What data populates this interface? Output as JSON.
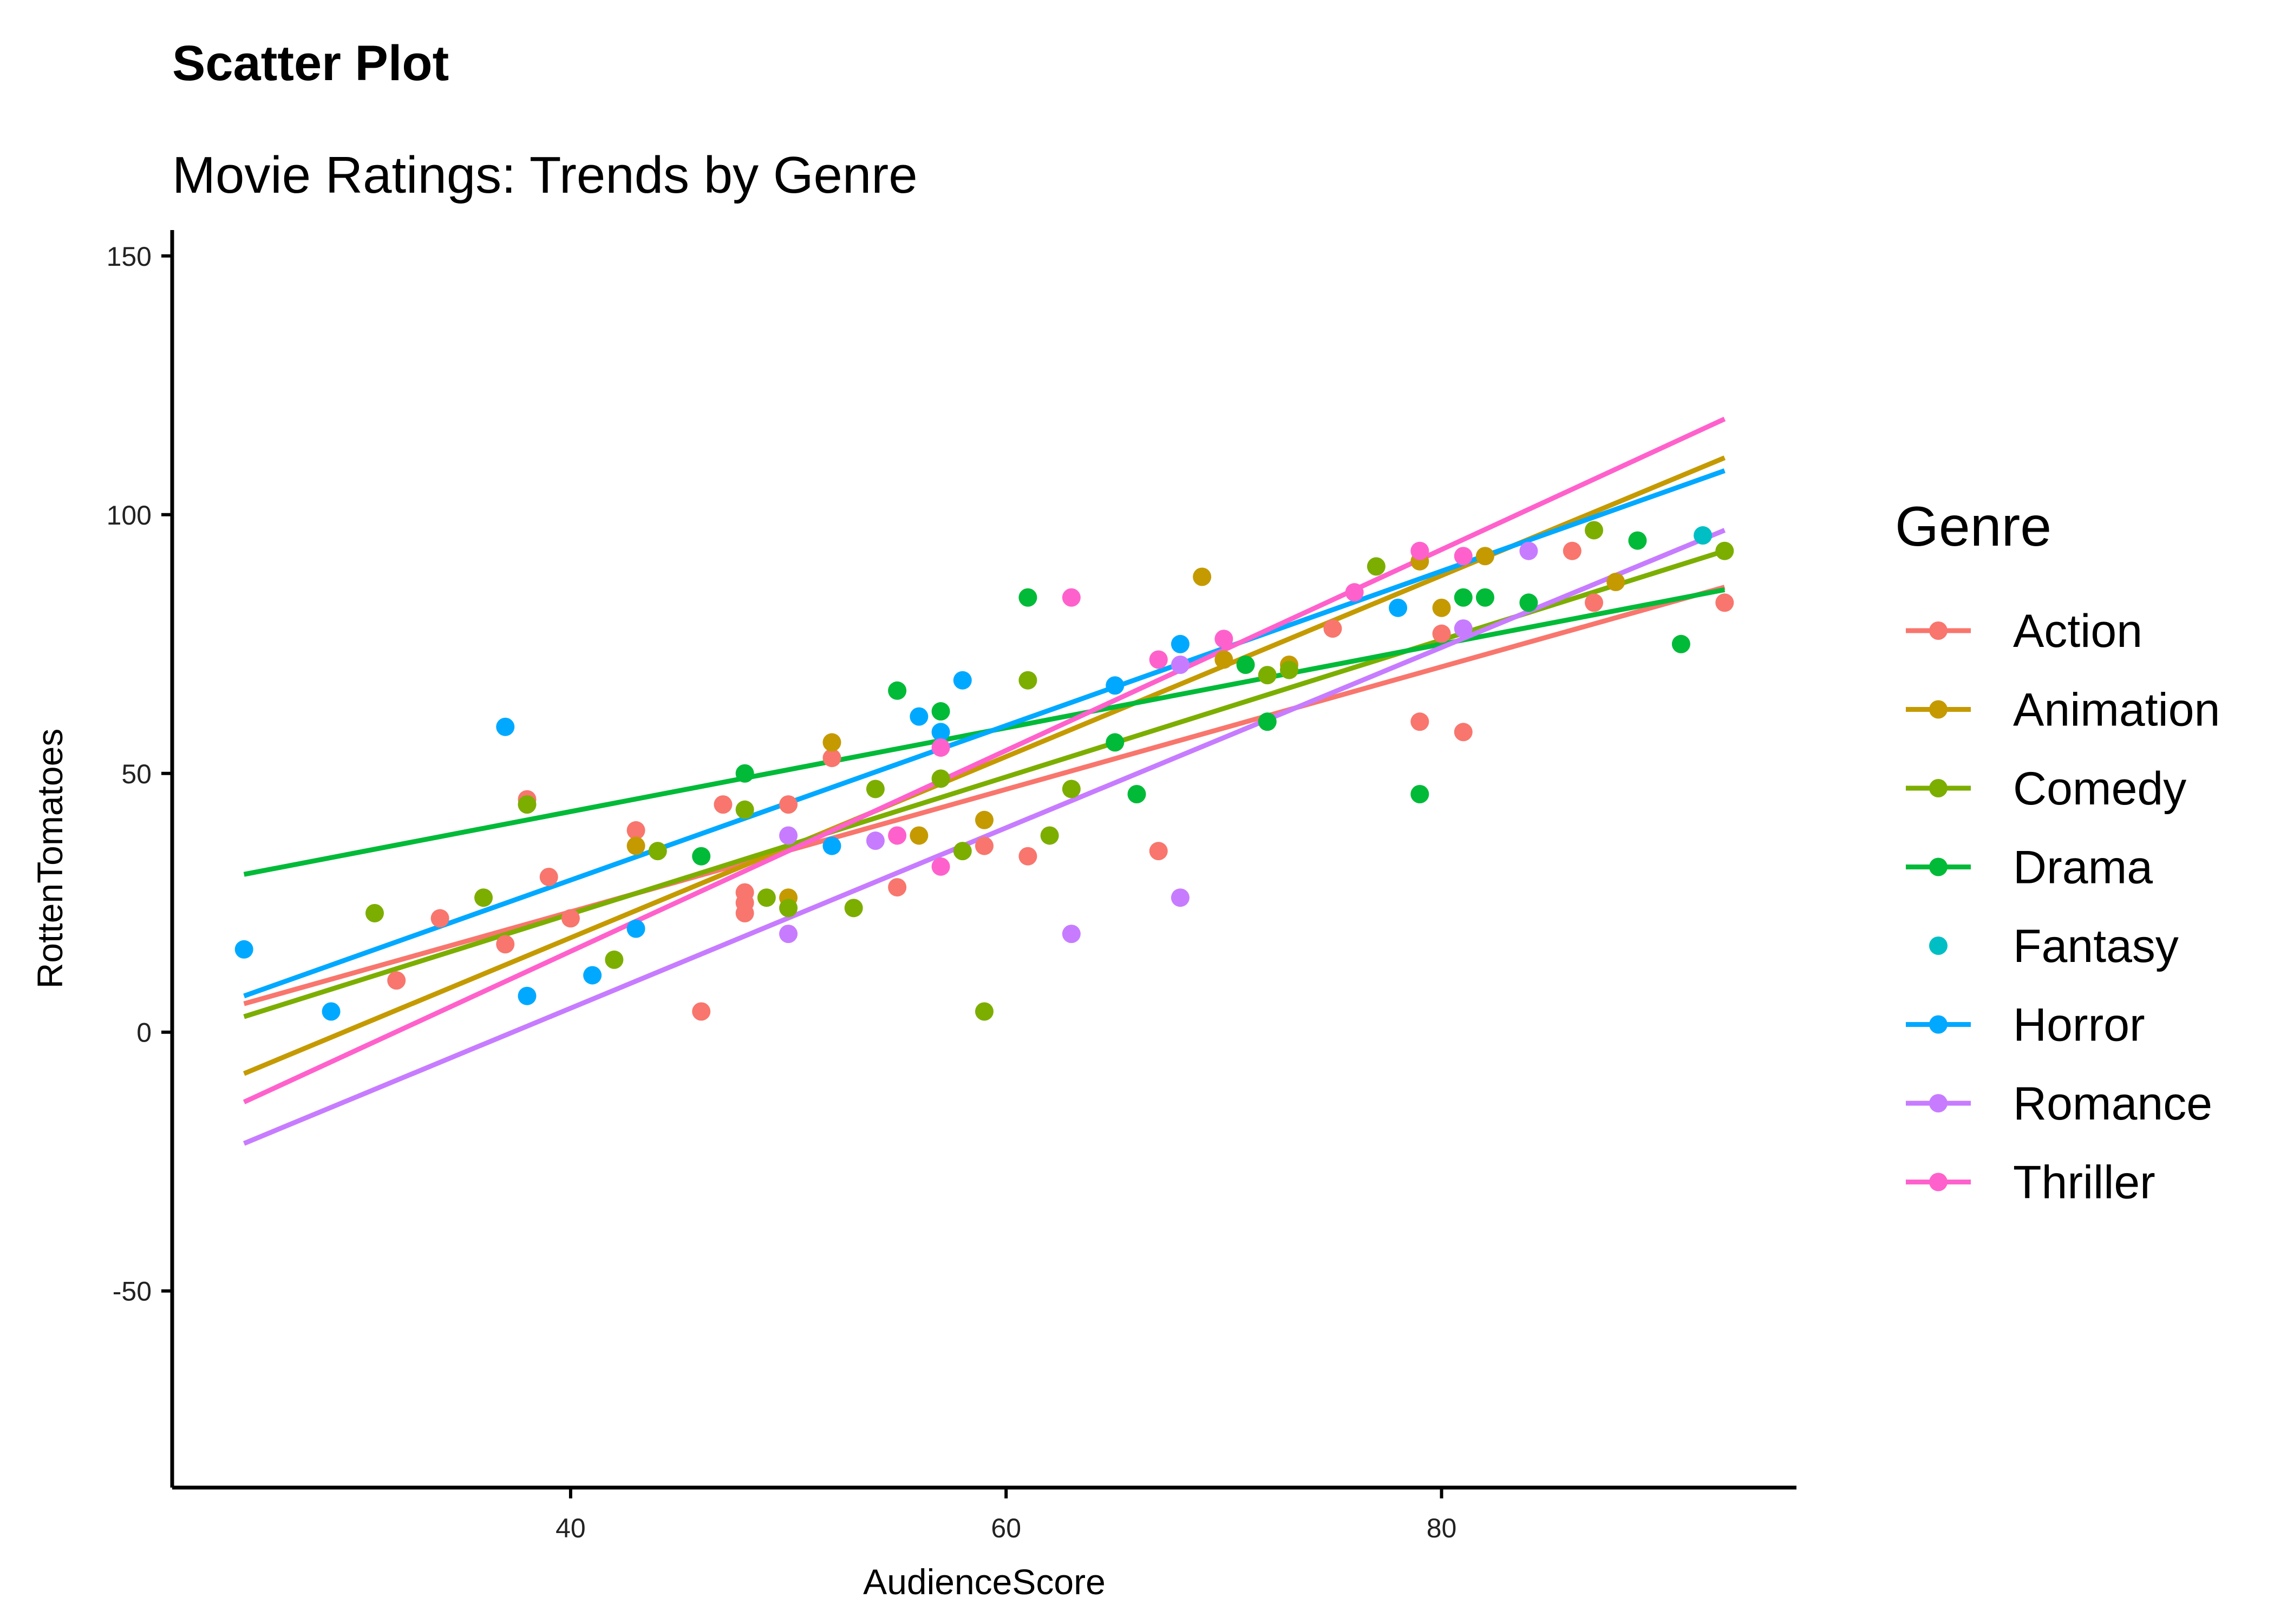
{
  "chart_data": {
    "type": "scatter",
    "title": "Scatter Plot",
    "subtitle": "Movie Ratings: Trends by Genre",
    "xlabel": "AudienceScore",
    "ylabel": "RottenTomatoes",
    "xlim": [
      21.7,
      96.3
    ],
    "ylim": [
      -88,
      155
    ],
    "xticks": [
      40,
      60,
      80
    ],
    "yticks": [
      150,
      100,
      50,
      0,
      -50
    ],
    "grid": false,
    "legend": {
      "title": "Genre",
      "position": "right"
    },
    "series": [
      {
        "name": "Action",
        "color": "#F8766D",
        "points": [
          [
            32,
            10
          ],
          [
            34,
            22
          ],
          [
            37,
            17
          ],
          [
            38,
            45
          ],
          [
            39,
            30
          ],
          [
            40,
            22
          ],
          [
            43,
            39
          ],
          [
            46,
            4
          ],
          [
            47,
            44
          ],
          [
            48,
            27
          ],
          [
            48,
            25
          ],
          [
            48,
            23
          ],
          [
            50,
            44
          ],
          [
            52,
            53
          ],
          [
            55,
            28
          ],
          [
            59,
            36
          ],
          [
            61,
            34
          ],
          [
            67,
            35
          ],
          [
            67,
            72
          ],
          [
            75,
            78
          ],
          [
            79,
            60
          ],
          [
            80,
            77
          ],
          [
            81,
            58
          ],
          [
            86,
            93
          ],
          [
            87,
            83
          ],
          [
            93,
            83
          ]
        ],
        "trend": [
          [
            25,
            5.5
          ],
          [
            93,
            86
          ]
        ]
      },
      {
        "name": "Animation",
        "color": "#C49A00",
        "points": [
          [
            43,
            36
          ],
          [
            50,
            26
          ],
          [
            52,
            56
          ],
          [
            56,
            38
          ],
          [
            59,
            41
          ],
          [
            69,
            88
          ],
          [
            70,
            72
          ],
          [
            73,
            71
          ],
          [
            79,
            91
          ],
          [
            80,
            82
          ],
          [
            82,
            92
          ],
          [
            88,
            87
          ]
        ],
        "trend": [
          [
            25,
            -8
          ],
          [
            93,
            111
          ]
        ]
      },
      {
        "name": "Comedy",
        "color": "#7CAE00",
        "points": [
          [
            31,
            23
          ],
          [
            36,
            26
          ],
          [
            38,
            44
          ],
          [
            42,
            14
          ],
          [
            44,
            35
          ],
          [
            48,
            43
          ],
          [
            49,
            26
          ],
          [
            50,
            24
          ],
          [
            53,
            24
          ],
          [
            54,
            47
          ],
          [
            57,
            49
          ],
          [
            58,
            35
          ],
          [
            59,
            4
          ],
          [
            61,
            68
          ],
          [
            62,
            38
          ],
          [
            63,
            47
          ],
          [
            72,
            69
          ],
          [
            73,
            70
          ],
          [
            77,
            90
          ],
          [
            87,
            97
          ],
          [
            93,
            93
          ]
        ],
        "trend": [
          [
            25,
            3
          ],
          [
            93,
            93
          ]
        ]
      },
      {
        "name": "Drama",
        "color": "#00BA38",
        "points": [
          [
            46,
            34
          ],
          [
            48,
            50
          ],
          [
            55,
            66
          ],
          [
            57,
            62
          ],
          [
            61,
            84
          ],
          [
            65,
            56
          ],
          [
            66,
            46
          ],
          [
            71,
            71
          ],
          [
            72,
            60
          ],
          [
            79,
            46
          ],
          [
            81,
            84
          ],
          [
            82,
            84
          ],
          [
            84,
            83
          ],
          [
            89,
            95
          ],
          [
            91,
            75
          ]
        ],
        "trend": [
          [
            25,
            30.5
          ],
          [
            93,
            85.5
          ]
        ]
      },
      {
        "name": "Fantasy",
        "color": "#00BFC4",
        "points": [
          [
            92,
            96
          ]
        ],
        "trend": []
      },
      {
        "name": "Horror",
        "color": "#00A9FF",
        "points": [
          [
            25,
            16
          ],
          [
            29,
            4
          ],
          [
            37,
            59
          ],
          [
            38,
            7
          ],
          [
            41,
            11
          ],
          [
            43,
            20
          ],
          [
            52,
            36
          ],
          [
            56,
            61
          ],
          [
            57,
            58
          ],
          [
            58,
            68
          ],
          [
            65,
            67
          ],
          [
            68,
            75
          ],
          [
            78,
            82
          ]
        ],
        "trend": [
          [
            25,
            7
          ],
          [
            93,
            108.5
          ]
        ]
      },
      {
        "name": "Romance",
        "color": "#C77CFF",
        "points": [
          [
            50,
            38
          ],
          [
            50,
            19
          ],
          [
            54,
            37
          ],
          [
            63,
            19
          ],
          [
            68,
            71
          ],
          [
            68,
            26
          ],
          [
            81,
            78
          ],
          [
            84,
            93
          ]
        ],
        "trend": [
          [
            25,
            -21.5
          ],
          [
            93,
            97
          ]
        ]
      },
      {
        "name": "Thriller",
        "color": "#FF61CC",
        "points": [
          [
            55,
            38
          ],
          [
            57,
            55
          ],
          [
            57,
            32
          ],
          [
            63,
            84
          ],
          [
            67,
            72
          ],
          [
            70,
            76
          ],
          [
            76,
            85
          ],
          [
            79,
            93
          ],
          [
            81,
            92
          ]
        ],
        "trend": [
          [
            25,
            -13.5
          ],
          [
            93,
            118.5
          ]
        ]
      }
    ]
  }
}
